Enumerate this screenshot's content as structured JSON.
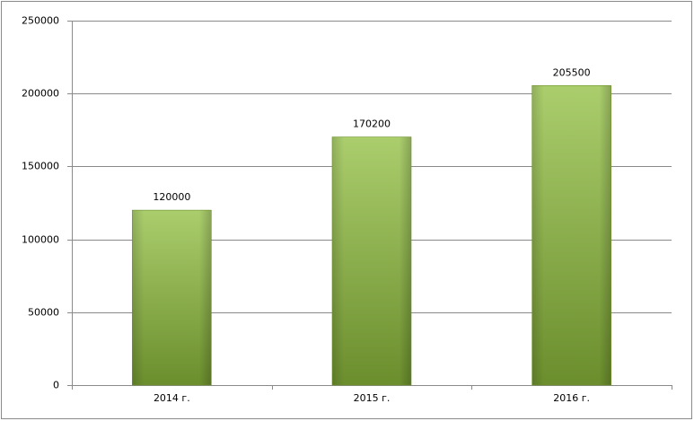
{
  "chart_data": {
    "type": "bar",
    "categories": [
      "2014 г.",
      "2015 г.",
      "2016 г."
    ],
    "values": [
      120000,
      170200,
      205500
    ],
    "color": "#8fbd3c",
    "ylim": [
      0,
      250000
    ],
    "yticks": [
      0,
      50000,
      100000,
      150000,
      200000,
      250000
    ],
    "grid": true
  }
}
